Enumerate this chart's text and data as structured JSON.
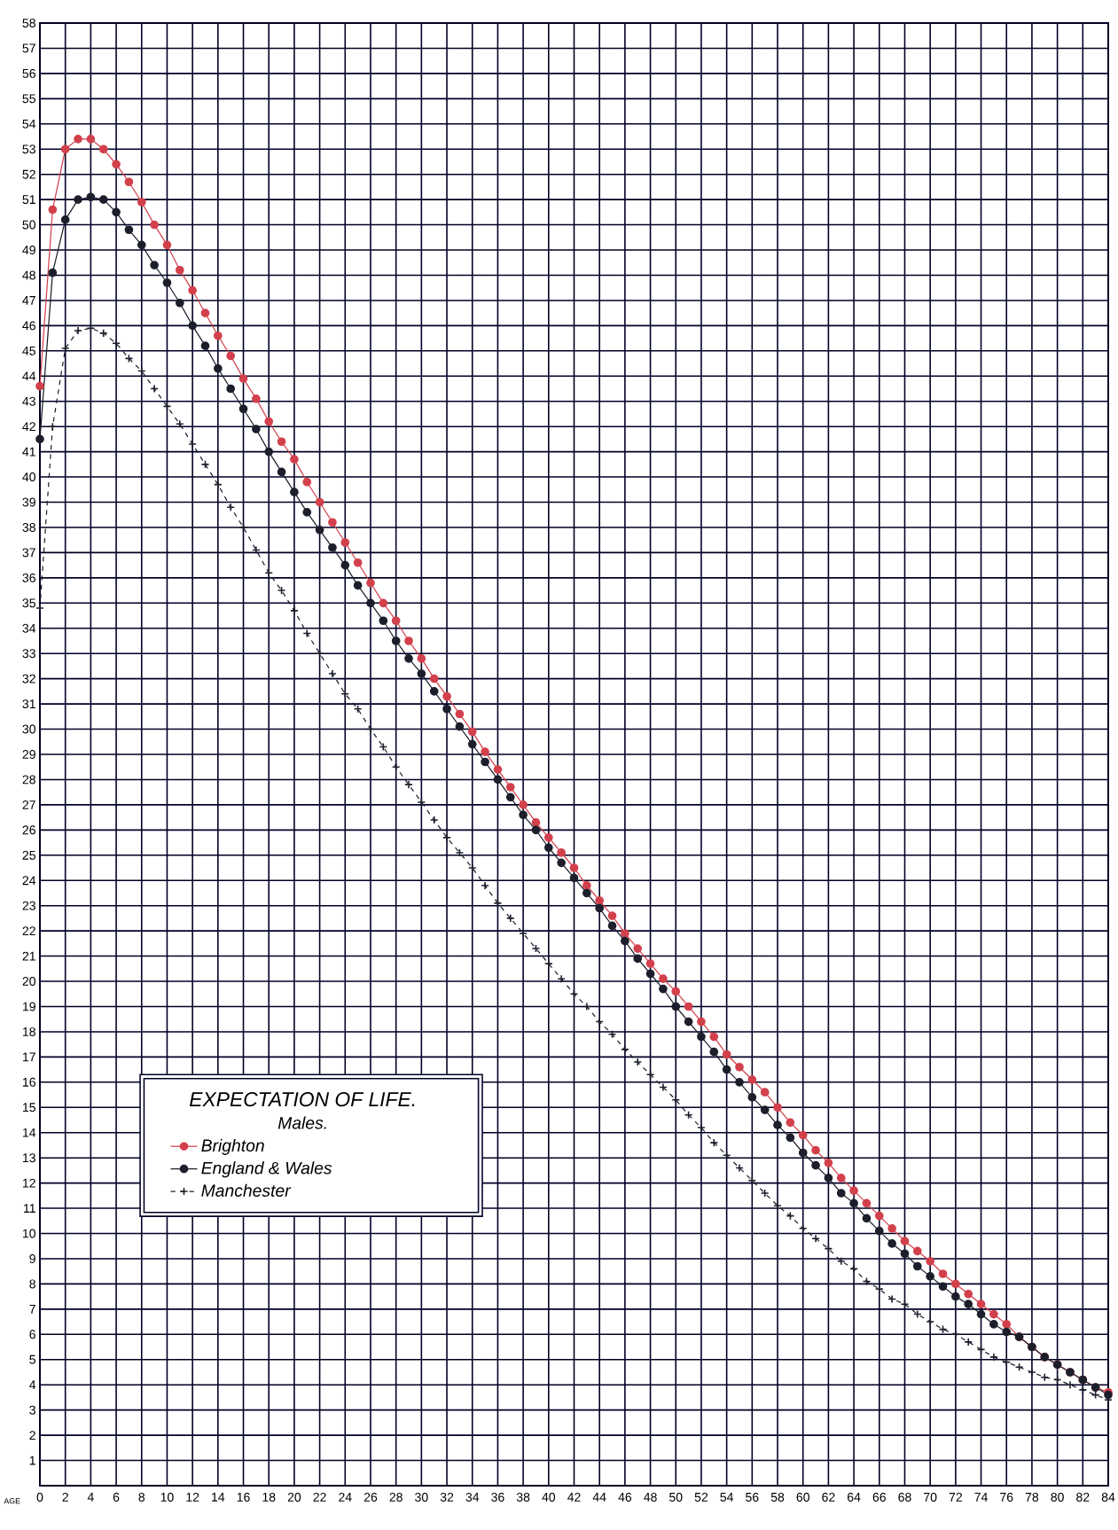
{
  "chart_data": {
    "type": "line",
    "title": "EXPECTATION OF LIFE.",
    "subtitle": "Males.",
    "xlabel": "AGE",
    "x": [
      0,
      1,
      2,
      3,
      4,
      5,
      6,
      7,
      8,
      9,
      10,
      11,
      12,
      13,
      14,
      15,
      16,
      17,
      18,
      19,
      20,
      21,
      22,
      23,
      24,
      25,
      26,
      27,
      28,
      29,
      30,
      31,
      32,
      33,
      34,
      35,
      36,
      37,
      38,
      39,
      40,
      41,
      42,
      43,
      44,
      45,
      46,
      47,
      48,
      49,
      50,
      51,
      52,
      53,
      54,
      55,
      56,
      57,
      58,
      59,
      60,
      61,
      62,
      63,
      64,
      65,
      66,
      67,
      68,
      69,
      70,
      71,
      72,
      73,
      74,
      75,
      76,
      77,
      78,
      79,
      80,
      81,
      82,
      83,
      84
    ],
    "series": [
      {
        "name": "Brighton",
        "color": "#d2404c",
        "marker": "circle",
        "line_style": "solid",
        "values": [
          43.6,
          50.6,
          53.0,
          53.4,
          53.4,
          53.0,
          52.4,
          51.7,
          50.9,
          50.0,
          49.2,
          48.2,
          47.4,
          46.5,
          45.6,
          44.8,
          43.9,
          43.1,
          42.2,
          41.4,
          40.7,
          39.8,
          39.0,
          38.2,
          37.4,
          36.6,
          35.8,
          35.0,
          34.3,
          33.5,
          32.8,
          32.0,
          31.3,
          30.6,
          29.9,
          29.1,
          28.4,
          27.7,
          27.0,
          26.3,
          25.7,
          25.1,
          24.5,
          23.8,
          23.2,
          22.6,
          21.9,
          21.3,
          20.7,
          20.1,
          19.6,
          19.0,
          18.4,
          17.8,
          17.1,
          16.6,
          16.1,
          15.6,
          15.0,
          14.4,
          13.9,
          13.3,
          12.8,
          12.2,
          11.7,
          11.2,
          10.7,
          10.2,
          9.7,
          9.3,
          8.9,
          8.4,
          8.0,
          7.6,
          7.2,
          6.8,
          6.4,
          5.9,
          5.5,
          5.1,
          4.8,
          4.5,
          4.2,
          3.9,
          3.7
        ]
      },
      {
        "name": "England & Wales",
        "color": "#1c1f2b",
        "marker": "circle",
        "line_style": "solid",
        "values": [
          41.5,
          48.1,
          50.2,
          51.0,
          51.1,
          51.0,
          50.5,
          49.8,
          49.2,
          48.4,
          47.7,
          46.9,
          46.0,
          45.2,
          44.3,
          43.5,
          42.7,
          41.9,
          41.0,
          40.2,
          39.4,
          38.6,
          37.9,
          37.2,
          36.5,
          35.7,
          35.0,
          34.3,
          33.5,
          32.8,
          32.2,
          31.5,
          30.8,
          30.1,
          29.4,
          28.7,
          28.0,
          27.3,
          26.6,
          26.0,
          25.3,
          24.7,
          24.1,
          23.5,
          22.9,
          22.2,
          21.6,
          20.9,
          20.3,
          19.7,
          19.0,
          18.4,
          17.8,
          17.2,
          16.5,
          16.0,
          15.4,
          14.9,
          14.3,
          13.8,
          13.2,
          12.7,
          12.2,
          11.6,
          11.2,
          10.6,
          10.1,
          9.6,
          9.2,
          8.7,
          8.3,
          7.9,
          7.5,
          7.2,
          6.8,
          6.4,
          6.1,
          5.9,
          5.5,
          5.1,
          4.8,
          4.5,
          4.2,
          3.9,
          3.6
        ]
      },
      {
        "name": "Manchester",
        "color": "#1c1f2b",
        "marker": "cross",
        "line_style": "dashed",
        "values": [
          34.8,
          42.0,
          45.1,
          45.8,
          45.9,
          45.7,
          45.3,
          44.7,
          44.2,
          43.5,
          42.8,
          42.1,
          41.3,
          40.5,
          39.7,
          38.8,
          38.0,
          37.1,
          36.2,
          35.5,
          34.7,
          33.8,
          33.0,
          32.2,
          31.4,
          30.8,
          30.0,
          29.3,
          28.5,
          27.8,
          27.1,
          26.4,
          25.7,
          25.1,
          24.5,
          23.8,
          23.1,
          22.5,
          21.9,
          21.3,
          20.7,
          20.1,
          19.5,
          19.0,
          18.4,
          17.9,
          17.3,
          16.8,
          16.3,
          15.8,
          15.3,
          14.7,
          14.2,
          13.6,
          13.1,
          12.6,
          12.1,
          11.6,
          11.1,
          10.7,
          10.2,
          9.8,
          9.4,
          8.9,
          8.6,
          8.1,
          7.8,
          7.4,
          7.2,
          6.8,
          6.5,
          6.2,
          6.0,
          5.7,
          5.4,
          5.1,
          4.9,
          4.7,
          4.5,
          4.3,
          4.2,
          4.0,
          3.8,
          3.6,
          3.4
        ]
      }
    ],
    "xlim": [
      0,
      84
    ],
    "ylim": [
      0,
      58
    ],
    "xticks": [
      0,
      2,
      4,
      6,
      8,
      10,
      12,
      14,
      16,
      18,
      20,
      22,
      24,
      26,
      28,
      30,
      32,
      34,
      36,
      38,
      40,
      42,
      44,
      46,
      48,
      50,
      52,
      54,
      56,
      58,
      60,
      62,
      64,
      66,
      68,
      70,
      72,
      74,
      76,
      78,
      80,
      82,
      84
    ],
    "yticks": [
      1,
      2,
      3,
      4,
      5,
      6,
      7,
      8,
      9,
      10,
      11,
      12,
      13,
      14,
      15,
      16,
      17,
      18,
      19,
      20,
      21,
      22,
      23,
      24,
      25,
      26,
      27,
      28,
      29,
      30,
      31,
      32,
      33,
      34,
      35,
      36,
      37,
      38,
      39,
      40,
      41,
      42,
      43,
      44,
      45,
      46,
      47,
      48,
      49,
      50,
      51,
      52,
      53,
      54,
      55,
      56,
      57,
      58
    ],
    "grid": true,
    "legend": "bottom left"
  }
}
